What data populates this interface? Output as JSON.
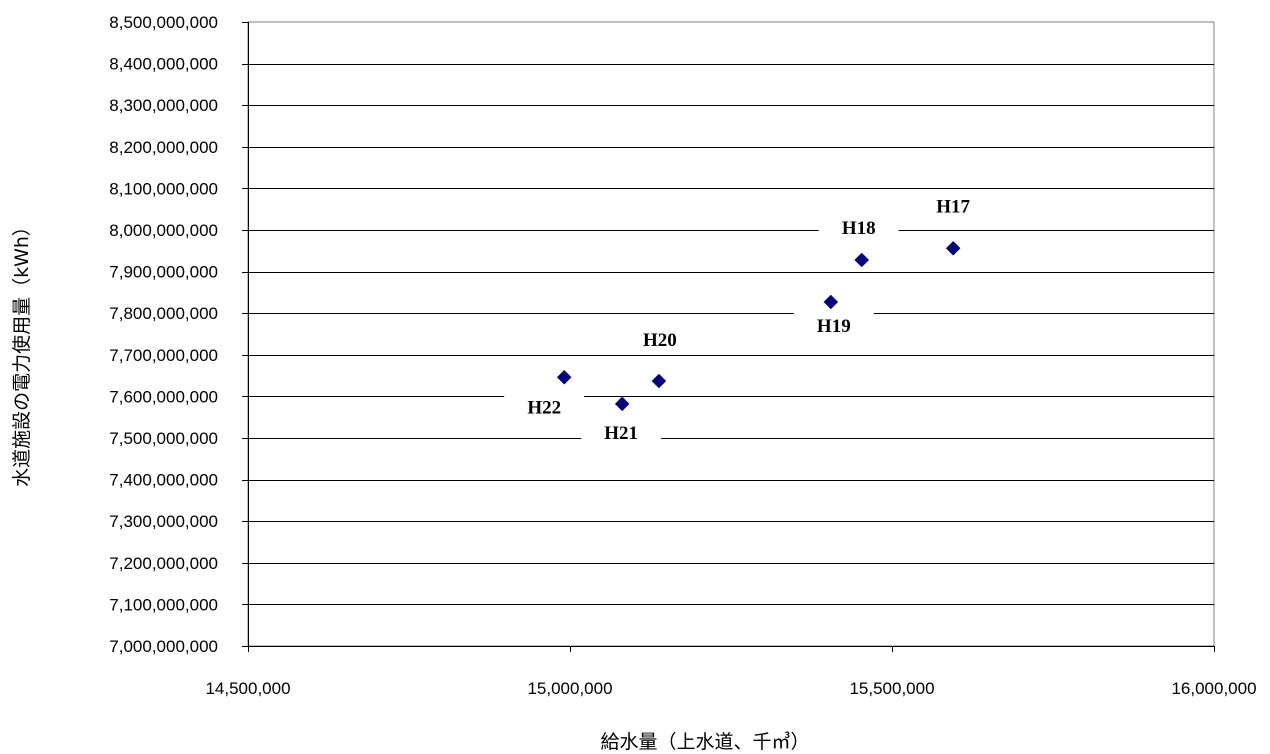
{
  "chart_data": {
    "type": "scatter",
    "title": "",
    "xlabel": "給水量（上水道、千㎥）",
    "ylabel": "水道施設の電力使用量（kWh）",
    "xlim": [
      14500000,
      16000000
    ],
    "ylim": [
      7000000000,
      8500000000
    ],
    "x_ticks": [
      14500000,
      15000000,
      15500000,
      16000000
    ],
    "x_tick_labels": [
      "14,500,000",
      "15,000,000",
      "15,500,000",
      "16,000,000"
    ],
    "y_ticks": [
      7000000000,
      7100000000,
      7200000000,
      7300000000,
      7400000000,
      7500000000,
      7600000000,
      7700000000,
      7800000000,
      7900000000,
      8000000000,
      8100000000,
      8200000000,
      8300000000,
      8400000000,
      8500000000
    ],
    "y_tick_labels": [
      "7,000,000,000",
      "7,100,000,000",
      "7,200,000,000",
      "7,300,000,000",
      "7,400,000,000",
      "7,500,000,000",
      "7,600,000,000",
      "7,700,000,000",
      "7,800,000,000",
      "7,900,000,000",
      "8,000,000,000",
      "8,100,000,000",
      "8,200,000,000",
      "8,300,000,000",
      "8,400,000,000",
      "8,500,000,000"
    ],
    "grid": "horizontal",
    "marker": "diamond",
    "marker_color": "#000080",
    "points": [
      {
        "label": "H17",
        "x": 15595000,
        "y": 7956000000
      },
      {
        "label": "H18",
        "x": 15453000,
        "y": 7928000000
      },
      {
        "label": "H19",
        "x": 15405000,
        "y": 7827000000
      },
      {
        "label": "H20",
        "x": 15138000,
        "y": 7637000000
      },
      {
        "label": "H21",
        "x": 15081000,
        "y": 7582000000
      },
      {
        "label": "H22",
        "x": 14991000,
        "y": 7646000000
      }
    ]
  }
}
